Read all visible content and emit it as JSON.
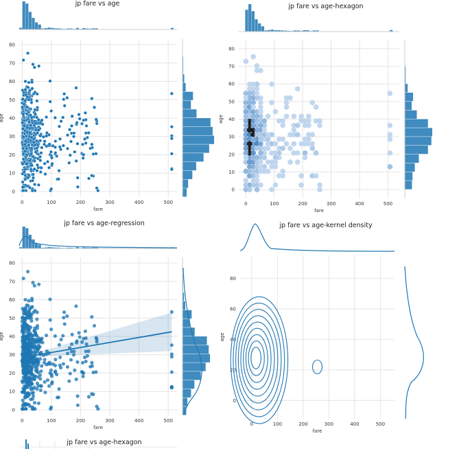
{
  "chart_data": [
    {
      "type": "scatter",
      "title": "jp fare vs age",
      "xlabel": "fare",
      "ylabel": "age",
      "xlim": [
        -10,
        530
      ],
      "ylim": [
        -3,
        83
      ],
      "xticks": [
        0,
        100,
        200,
        300,
        400,
        500
      ],
      "yticks": [
        0,
        10,
        20,
        30,
        40,
        50,
        60,
        70,
        80
      ],
      "marginals": "histogram",
      "color": "#1f77b4"
    },
    {
      "type": "heatmap",
      "title": "jp fare vs age-hexagon",
      "xlabel": "fare",
      "ylabel": "age",
      "xlim": [
        -25,
        540
      ],
      "ylim": [
        -5,
        85
      ],
      "xticks": [
        0,
        100,
        200,
        300,
        400,
        500
      ],
      "yticks": [
        0,
        10,
        20,
        30,
        40,
        50,
        60,
        70,
        80
      ],
      "marginals": "histogram",
      "color": "#1f77b4"
    },
    {
      "type": "scatter",
      "title": "jp fare vs age-regression",
      "xlabel": "fare",
      "ylabel": "age",
      "xlim": [
        -10,
        530
      ],
      "ylim": [
        -3,
        83
      ],
      "xticks": [
        0,
        100,
        200,
        300,
        400,
        500
      ],
      "yticks": [
        0,
        10,
        20,
        30,
        40,
        50,
        60,
        70,
        80
      ],
      "regression_line": {
        "x": [
          0,
          512
        ],
        "y": [
          28.5,
          42.5
        ]
      },
      "marginals": "histogram+kde",
      "color": "#1f77b4"
    },
    {
      "type": "line",
      "title": "jp fare vs age-kernel density",
      "xlabel": "fare",
      "ylabel": "age",
      "xlim": [
        -45,
        555
      ],
      "ylim": [
        -12,
        95
      ],
      "xticks": [
        0,
        100,
        200,
        300,
        400,
        500
      ],
      "yticks": [
        0,
        20,
        40,
        60,
        80
      ],
      "contour_center": {
        "x": 15,
        "y": 28
      },
      "marginals": "kde",
      "color": "#1f77b4"
    },
    {
      "type": "heatmap",
      "title": "jp fare vs age-hexagon",
      "partial": true
    }
  ]
}
